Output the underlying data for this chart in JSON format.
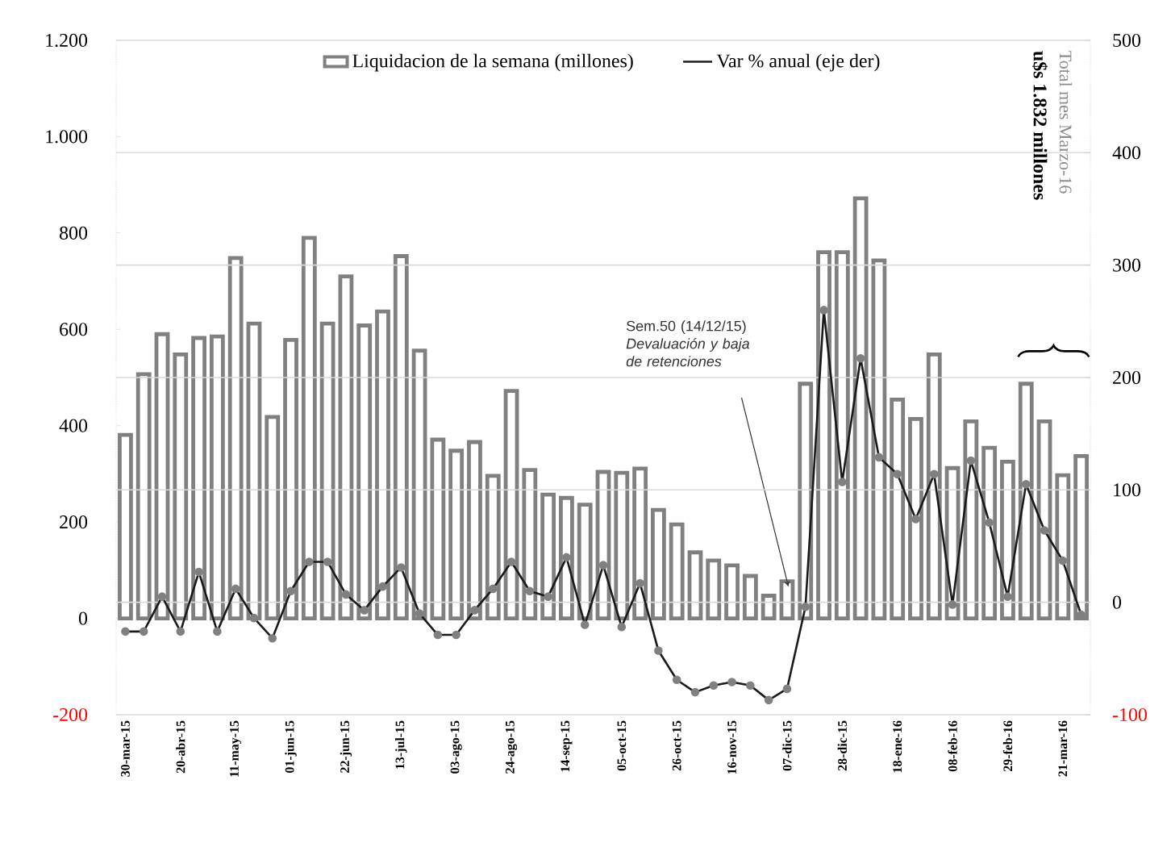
{
  "chart_data": {
    "type": "bar",
    "categories": [
      "30-mar-15",
      null,
      null,
      "20-abr-15",
      null,
      null,
      "11-may-15",
      null,
      null,
      "01-jun-15",
      null,
      null,
      "22-jun-15",
      null,
      null,
      "13-jul-15",
      null,
      null,
      "03-ago-15",
      null,
      null,
      "24-ago-15",
      null,
      null,
      "14-sep-15",
      null,
      null,
      "05-oct-15",
      null,
      null,
      "26-oct-15",
      null,
      null,
      "16-nov-15",
      null,
      null,
      "07-dic-15",
      null,
      null,
      "28-dic-15",
      null,
      null,
      "18-ene-16",
      null,
      null,
      "08-feb-16",
      null,
      null,
      "29-feb-16",
      null,
      null,
      "21-mar-16",
      null
    ],
    "series": [
      {
        "name": "Liquidacion de la semana (millones)",
        "color": "#808080",
        "values": [
          381,
          507,
          590,
          548,
          582,
          585,
          748,
          612,
          418,
          578,
          790,
          612,
          710,
          608,
          637,
          752,
          556,
          371,
          348,
          366,
          296,
          472,
          308,
          257,
          250,
          236,
          304,
          302,
          311,
          225,
          195,
          137,
          120,
          110,
          88,
          47,
          77,
          487,
          760,
          760,
          872,
          743,
          454,
          414,
          548,
          312,
          409,
          354,
          325,
          487,
          409,
          297,
          337
        ]
      },
      {
        "name": "Var % anual (eje der)",
        "type": "line",
        "axis": "y2",
        "color": "#1a1a1a",
        "marker": "circle",
        "values": [
          -26,
          -26,
          5,
          -26,
          27,
          -26,
          12,
          -14,
          -32,
          10,
          36,
          36,
          7,
          -7,
          14,
          31,
          -10,
          -29,
          -29,
          -7,
          12,
          36,
          10,
          5,
          40,
          -20,
          33,
          -22,
          17,
          -43,
          -69,
          -80,
          -74,
          -71,
          -74,
          -87,
          -77,
          -4,
          260,
          107,
          217,
          129,
          114,
          74,
          114,
          -2,
          126,
          71,
          5,
          105,
          64,
          37,
          -11
        ]
      }
    ],
    "ylim": [
      -200,
      1200
    ],
    "yticks": [
      {
        "value": -200,
        "label": "-200"
      },
      0,
      200,
      400,
      600,
      800,
      {
        "value": 1000,
        "label": "1.000"
      },
      {
        "value": 1200,
        "label": "1.200"
      }
    ],
    "y2lim": [
      -100,
      500
    ],
    "y2ticks": [
      -100,
      0,
      100,
      200,
      300,
      400,
      500
    ],
    "grid": "y",
    "legend": "top",
    "annotations": [
      "Sem.50 (14/12/15)",
      "Devaluación y baja de retenciones",
      "Total mes Marzo-16",
      "u$s 1.832 millones"
    ]
  }
}
